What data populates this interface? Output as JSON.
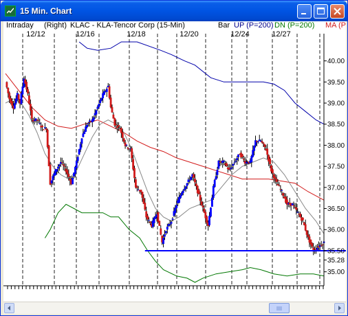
{
  "window": {
    "title": "15 Min. Chart"
  },
  "header": {
    "intraday": "Intraday",
    "right": "(Right)",
    "symbol": "KLAC - KLA-Tencor Corp (15-Min)",
    "bar": "Bar",
    "up": "UP (P=200)",
    "dn": "DN (P=200)",
    "ma": "MA (P"
  },
  "chart_data": {
    "type": "candlestick",
    "title": "KLAC - KLA-Tencor Corp (15-Min)",
    "x_dates": [
      "12/12",
      "12/16",
      "12/18",
      "12/20",
      "12/24",
      "12/27"
    ],
    "y_ticks": [
      35.0,
      35.28,
      35.5,
      36.0,
      36.5,
      37.0,
      37.5,
      38.0,
      38.5,
      39.0,
      39.5,
      40.0
    ],
    "ylim": [
      34.75,
      40.45
    ],
    "support_line": 35.5,
    "current_price_label": 35.28,
    "price_path": [
      [
        0,
        39.5
      ],
      [
        3,
        39.1
      ],
      [
        6,
        38.9
      ],
      [
        9,
        39.2
      ],
      [
        11,
        39.0
      ],
      [
        14,
        39.6
      ],
      [
        17,
        39.2
      ],
      [
        20,
        38.6
      ],
      [
        24,
        38.6
      ],
      [
        28,
        38.4
      ],
      [
        31,
        38.4
      ],
      [
        34,
        37.1
      ],
      [
        38,
        37.4
      ],
      [
        42,
        37.6
      ],
      [
        46,
        37.4
      ],
      [
        50,
        37.1
      ],
      [
        54,
        37.6
      ],
      [
        58,
        38.2
      ],
      [
        62,
        38.5
      ],
      [
        66,
        38.6
      ],
      [
        70,
        38.9
      ],
      [
        74,
        39.2
      ],
      [
        78,
        39.4
      ],
      [
        80,
        38.9
      ],
      [
        83,
        38.5
      ],
      [
        87,
        38.4
      ],
      [
        91,
        38.0
      ],
      [
        95,
        37.9
      ],
      [
        99,
        37.0
      ],
      [
        103,
        36.9
      ],
      [
        107,
        36.3
      ],
      [
        111,
        36.1
      ],
      [
        115,
        36.4
      ],
      [
        119,
        35.7
      ],
      [
        122,
        36.0
      ],
      [
        126,
        36.2
      ],
      [
        130,
        36.6
      ],
      [
        134,
        36.9
      ],
      [
        138,
        37.1
      ],
      [
        142,
        37.3
      ],
      [
        146,
        36.9
      ],
      [
        150,
        36.5
      ],
      [
        154,
        36.1
      ],
      [
        158,
        37.0
      ],
      [
        162,
        37.6
      ],
      [
        166,
        37.6
      ],
      [
        170,
        37.4
      ],
      [
        174,
        37.6
      ],
      [
        178,
        37.8
      ],
      [
        182,
        37.6
      ],
      [
        186,
        37.6
      ],
      [
        190,
        38.1
      ],
      [
        194,
        38.1
      ],
      [
        198,
        37.9
      ],
      [
        202,
        37.4
      ],
      [
        206,
        37.1
      ],
      [
        210,
        36.9
      ],
      [
        214,
        36.6
      ],
      [
        218,
        36.6
      ],
      [
        222,
        36.4
      ],
      [
        226,
        36.2
      ],
      [
        230,
        35.8
      ],
      [
        234,
        35.5
      ],
      [
        238,
        35.6
      ],
      [
        242,
        35.7
      ]
    ],
    "upper_band": [
      [
        56,
        40.45
      ],
      [
        62,
        40.3
      ],
      [
        70,
        40.25
      ],
      [
        80,
        40.3
      ],
      [
        88,
        40.45
      ],
      [
        100,
        40.45
      ],
      [
        118,
        40.25
      ],
      [
        126,
        40.15
      ],
      [
        136,
        40.0
      ],
      [
        144,
        39.9
      ],
      [
        156,
        39.6
      ],
      [
        166,
        39.5
      ],
      [
        176,
        39.5
      ],
      [
        186,
        39.5
      ],
      [
        196,
        39.5
      ],
      [
        204,
        39.45
      ],
      [
        212,
        39.3
      ],
      [
        220,
        39.0
      ],
      [
        228,
        38.8
      ],
      [
        236,
        38.6
      ],
      [
        242,
        38.5
      ]
    ],
    "lower_band": [
      [
        30,
        35.8
      ],
      [
        34,
        36.0
      ],
      [
        40,
        36.4
      ],
      [
        46,
        36.6
      ],
      [
        52,
        36.5
      ],
      [
        58,
        36.4
      ],
      [
        66,
        36.4
      ],
      [
        74,
        36.4
      ],
      [
        80,
        36.3
      ],
      [
        86,
        36.3
      ],
      [
        94,
        36.0
      ],
      [
        102,
        35.8
      ],
      [
        108,
        35.5
      ],
      [
        114,
        35.25
      ],
      [
        120,
        35.05
      ],
      [
        130,
        34.9
      ],
      [
        138,
        34.85
      ],
      [
        144,
        34.75
      ],
      [
        150,
        34.85
      ],
      [
        160,
        34.95
      ],
      [
        170,
        35.0
      ],
      [
        180,
        35.05
      ],
      [
        186,
        35.1
      ],
      [
        194,
        35.05
      ],
      [
        204,
        34.95
      ],
      [
        214,
        34.9
      ],
      [
        224,
        34.95
      ],
      [
        234,
        34.95
      ],
      [
        242,
        34.9
      ]
    ],
    "ma_red": [
      [
        0,
        39.7
      ],
      [
        10,
        39.3
      ],
      [
        20,
        38.9
      ],
      [
        30,
        38.6
      ],
      [
        40,
        38.45
      ],
      [
        50,
        38.4
      ],
      [
        60,
        38.5
      ],
      [
        70,
        38.6
      ],
      [
        80,
        38.45
      ],
      [
        90,
        38.3
      ],
      [
        100,
        38.1
      ],
      [
        110,
        37.95
      ],
      [
        120,
        37.85
      ],
      [
        130,
        37.7
      ],
      [
        140,
        37.6
      ],
      [
        150,
        37.5
      ],
      [
        160,
        37.4
      ],
      [
        170,
        37.3
      ],
      [
        180,
        37.2
      ],
      [
        190,
        37.2
      ],
      [
        200,
        37.2
      ],
      [
        210,
        37.15
      ],
      [
        220,
        37.1
      ],
      [
        230,
        36.9
      ],
      [
        242,
        36.7
      ]
    ],
    "ma_gray": [
      [
        0,
        39.0
      ],
      [
        6,
        39.1
      ],
      [
        12,
        39.0
      ],
      [
        18,
        38.7
      ],
      [
        24,
        38.3
      ],
      [
        30,
        37.8
      ],
      [
        36,
        37.5
      ],
      [
        42,
        37.3
      ],
      [
        48,
        37.2
      ],
      [
        54,
        37.4
      ],
      [
        60,
        37.8
      ],
      [
        66,
        38.2
      ],
      [
        72,
        38.5
      ],
      [
        78,
        38.6
      ],
      [
        84,
        38.5
      ],
      [
        90,
        38.3
      ],
      [
        96,
        37.9
      ],
      [
        102,
        37.4
      ],
      [
        108,
        36.9
      ],
      [
        114,
        36.5
      ],
      [
        120,
        36.3
      ],
      [
        126,
        36.2
      ],
      [
        132,
        36.3
      ],
      [
        140,
        36.5
      ],
      [
        148,
        36.6
      ],
      [
        156,
        36.7
      ],
      [
        164,
        37.0
      ],
      [
        172,
        37.3
      ],
      [
        180,
        37.5
      ],
      [
        188,
        37.6
      ],
      [
        196,
        37.7
      ],
      [
        204,
        37.6
      ],
      [
        212,
        37.3
      ],
      [
        220,
        36.9
      ],
      [
        228,
        36.5
      ],
      [
        236,
        36.2
      ],
      [
        242,
        35.9
      ]
    ],
    "colors": {
      "up_band": "#0000aa",
      "dn_band": "#007700",
      "ma": "#d21a1a",
      "ma_gray": "#888888",
      "support": "#0000ff",
      "candle_up": "#0000ff",
      "candle_down": "#d21a1a"
    }
  },
  "scroll": {
    "position": 0.79
  }
}
